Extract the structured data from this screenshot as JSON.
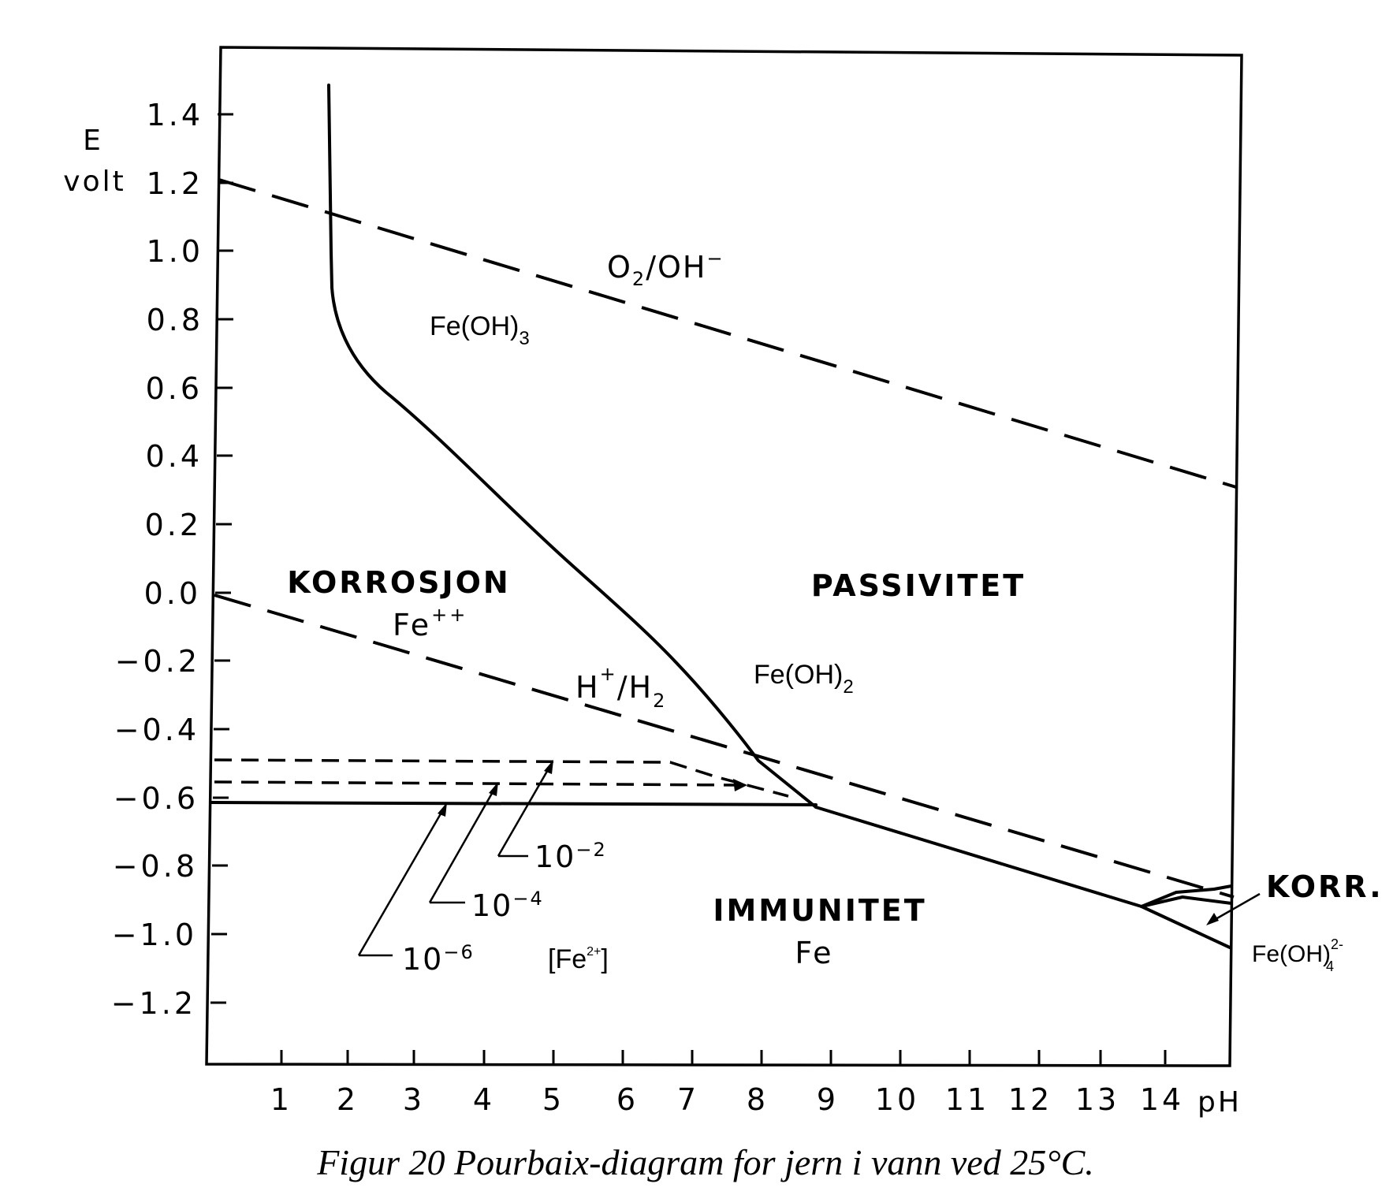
{
  "axes": {
    "y_label_top": "E",
    "y_label_bottom": "volt",
    "x_label": "pH",
    "y_ticks": [
      "1.4",
      "1.2",
      "1.0",
      "0.8",
      "0.6",
      "0.4",
      "0.2",
      "0.0",
      "−0.2",
      "−0.4",
      "−0.6",
      "−0.8",
      "−1.0",
      "−1.2"
    ],
    "x_ticks": [
      "1",
      "2",
      "3",
      "4",
      "5",
      "6",
      "7",
      "8",
      "9",
      "10",
      "11",
      "12",
      "13",
      "14"
    ]
  },
  "regions": {
    "korrosjon": "KORROSJON",
    "korrosjon_species": "Fe",
    "korrosjon_species_sup": "++",
    "passivitet": "PASSIVITET",
    "immunitet": "IMMUNITET",
    "immunitet_species": "Fe",
    "korr": "KORR."
  },
  "species": {
    "feoh3_base": "Fe(OH)",
    "feoh3_sub": "3",
    "feoh2_base": "Fe(OH)",
    "feoh2_sub": "2",
    "feoh4_base": "Fe(OH)",
    "feoh4_sub": "4",
    "feoh4_sup": "2-",
    "fe2_open": "[Fe",
    "fe2_sup": "2+",
    "fe2_close": "]"
  },
  "couples": {
    "o2_base": "O",
    "o2_sub": "2",
    "o2_rest": "/OH",
    "o2_sup": "−",
    "h_base": "H",
    "h_sup": "+",
    "h_rest": "/H",
    "h_sub": "2"
  },
  "concentrations": {
    "c2_base": "10",
    "c2_exp": "−2",
    "c4_base": "10",
    "c4_exp": "−4",
    "c6_base": "10",
    "c6_exp": "−6"
  },
  "caption": "Figur 20  Pourbaix-diagram for jern i vann ved 25°C."
}
